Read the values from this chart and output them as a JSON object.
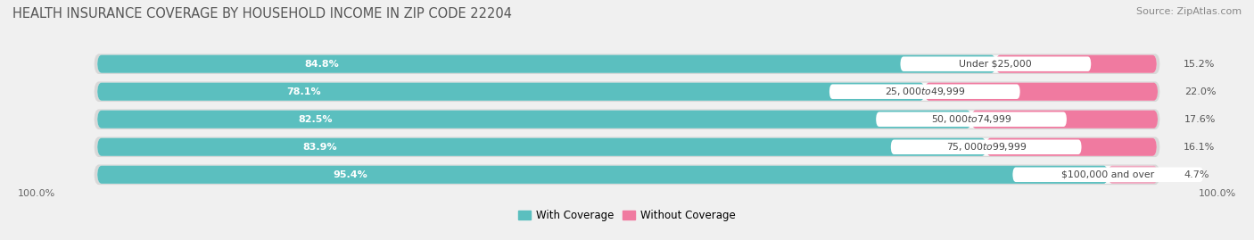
{
  "title": "HEALTH INSURANCE COVERAGE BY HOUSEHOLD INCOME IN ZIP CODE 22204",
  "source": "Source: ZipAtlas.com",
  "categories": [
    "Under $25,000",
    "$25,000 to $49,999",
    "$50,000 to $74,999",
    "$75,000 to $99,999",
    "$100,000 and over"
  ],
  "with_coverage": [
    84.8,
    78.1,
    82.5,
    83.9,
    95.4
  ],
  "without_coverage": [
    15.2,
    22.0,
    17.6,
    16.1,
    4.7
  ],
  "coverage_color": "#5bbfbf",
  "without_color": "#f07aa0",
  "without_color_last": "#f0a8c0",
  "bg_color": "#f0f0f0",
  "pill_bg": "#e0e0e0",
  "legend_coverage": "With Coverage",
  "legend_without": "Without Coverage",
  "left_label": "100.0%",
  "right_label": "100.0%",
  "title_fontsize": 10.5,
  "source_fontsize": 8,
  "bar_label_fontsize": 8,
  "value_label_fontsize": 8
}
